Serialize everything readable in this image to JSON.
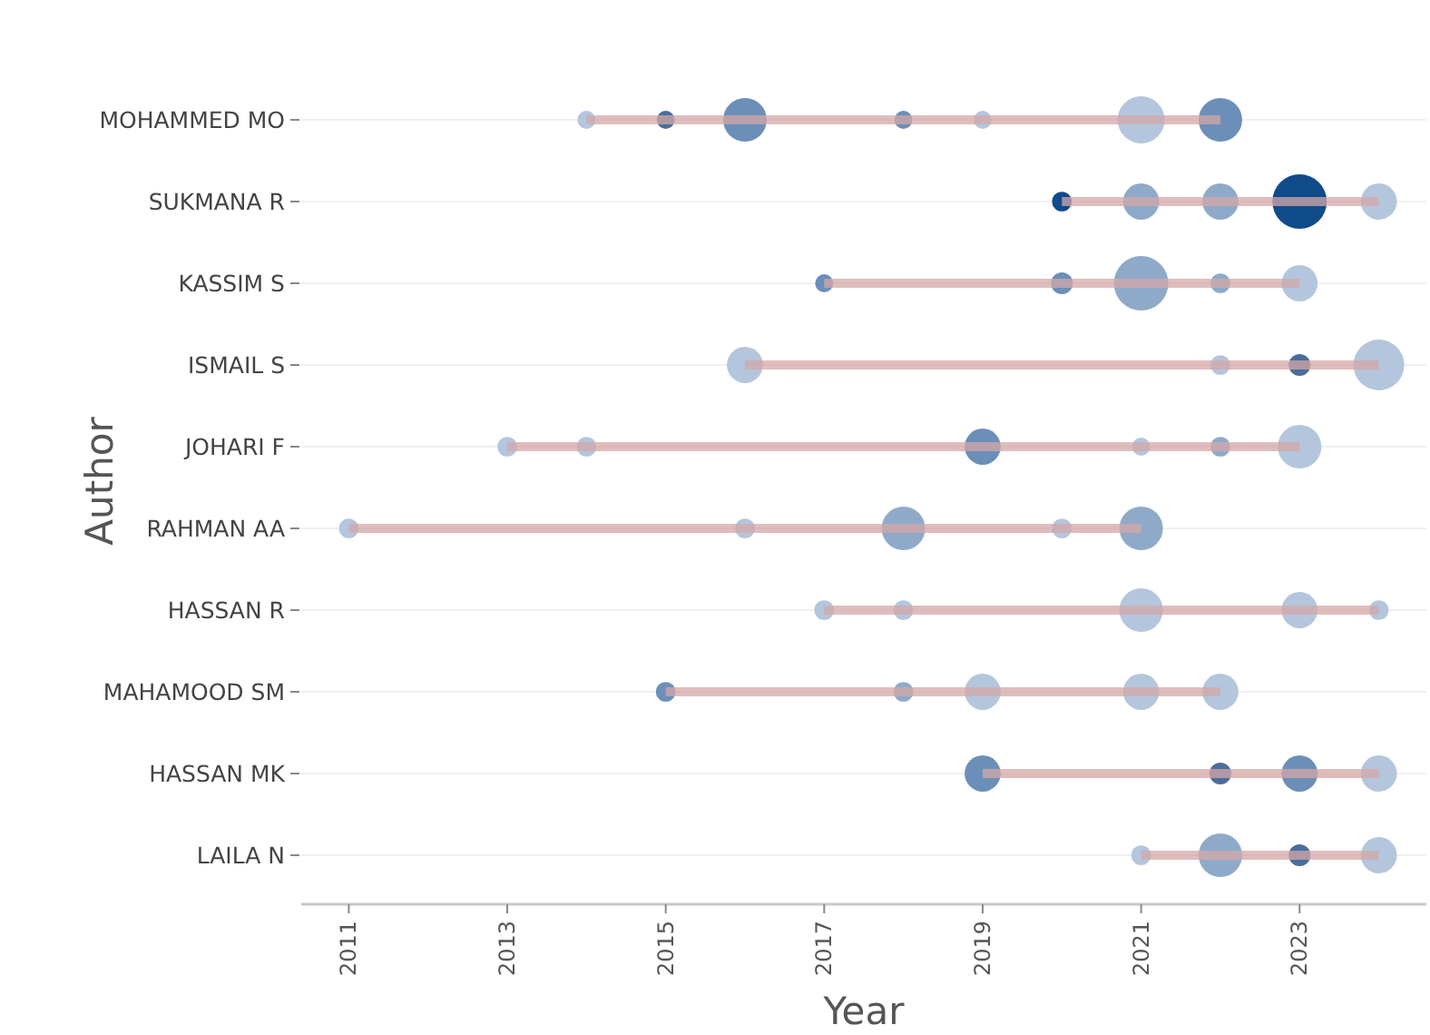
{
  "chart_data": {
    "type": "bar",
    "orientation": "horizontal",
    "xlabel": "Year",
    "ylabel": "Author",
    "categories": [
      "MOHAMMED MO",
      "SUKMANA R",
      "KASSIM S",
      "ISMAIL S",
      "JOHARI F",
      "RAHMAN AA",
      "HASSAN R",
      "MAHAMOOD SM",
      "HASSAN MK",
      "LAILA N"
    ],
    "xlim": [
      2010.4,
      2024.6
    ],
    "xticks": [
      2011,
      2013,
      2015,
      2017,
      2019,
      2021,
      2023
    ],
    "grid": "y",
    "series": [
      {
        "color": "#d4a7a7",
        "base": [
          2014,
          2020,
          2017,
          2016,
          2013,
          2011,
          2017,
          2015,
          2019,
          2021
        ],
        "values": [
          8,
          4,
          6,
          8,
          10,
          10,
          7,
          7,
          5,
          3
        ]
      },
      {
        "type": "bubble",
        "x": [
          "MOHAMMED MO",
          "MOHAMMED MO",
          "MOHAMMED MO",
          "MOHAMMED MO",
          "MOHAMMED MO",
          "MOHAMMED MO",
          "MOHAMMED MO",
          "SUKMANA R",
          "SUKMANA R",
          "SUKMANA R",
          "SUKMANA R",
          "SUKMANA R",
          "KASSIM S",
          "KASSIM S",
          "KASSIM S",
          "KASSIM S",
          "KASSIM S",
          "ISMAIL S",
          "ISMAIL S",
          "ISMAIL S",
          "ISMAIL S",
          "JOHARI F",
          "JOHARI F",
          "JOHARI F",
          "JOHARI F",
          "JOHARI F",
          "JOHARI F",
          "RAHMAN AA",
          "RAHMAN AA",
          "RAHMAN AA",
          "RAHMAN AA",
          "RAHMAN AA",
          "HASSAN R",
          "HASSAN R",
          "HASSAN R",
          "HASSAN R",
          "HASSAN R",
          "MAHAMOOD SM",
          "MAHAMOOD SM",
          "MAHAMOOD SM",
          "MAHAMOOD SM",
          "MAHAMOOD SM",
          "HASSAN MK",
          "HASSAN MK",
          "HASSAN MK",
          "HASSAN MK",
          "LAILA N",
          "LAILA N",
          "LAILA N",
          "LAILA N"
        ],
        "values": [
          2014,
          2015,
          2016,
          2018,
          2019,
          2021,
          2022,
          2020,
          2021,
          2022,
          2023,
          2024,
          2017,
          2020,
          2021,
          2022,
          2023,
          2016,
          2022,
          2023,
          2024,
          2013,
          2014,
          2019,
          2021,
          2022,
          2023,
          2011,
          2016,
          2018,
          2020,
          2021,
          2017,
          2018,
          2021,
          2023,
          2024,
          2015,
          2018,
          2019,
          2021,
          2022,
          2019,
          2022,
          2023,
          2024,
          2021,
          2022,
          2023,
          2024
        ],
        "sizes": [
          0.11,
          0.11,
          0.64,
          0.11,
          0.11,
          0.75,
          0.64,
          0.13,
          0.44,
          0.44,
          1,
          0.44,
          0.11,
          0.16,
          1,
          0.13,
          0.44,
          0.44,
          0.13,
          0.16,
          0.87,
          0.13,
          0.13,
          0.44,
          0.11,
          0.13,
          0.64,
          0.13,
          0.13,
          0.64,
          0.13,
          0.64,
          0.13,
          0.13,
          0.64,
          0.44,
          0.13,
          0.13,
          0.13,
          0.44,
          0.44,
          0.44,
          0.44,
          0.16,
          0.44,
          0.44,
          0.13,
          0.64,
          0.16,
          0.44
        ],
        "colors": [
          "#b3c6dd",
          "#4a6d9c",
          "#6b8fb9",
          "#6b8fb9",
          "#b3c6dd",
          "#b3c6dd",
          "#6b8fb9",
          "#104b8c",
          "#8faac9",
          "#8faac9",
          "#104b8c",
          "#b3c6dd",
          "#6b8fb9",
          "#6b8fb9",
          "#8faac9",
          "#8faac9",
          "#b3c6dd",
          "#b3c6dd",
          "#b3c6dd",
          "#4a6d9c",
          "#b3c6dd",
          "#b3c6dd",
          "#b3c6dd",
          "#6b8fb9",
          "#b3c6dd",
          "#8faac9",
          "#b3c6dd",
          "#b3c6dd",
          "#b3c6dd",
          "#8faac9",
          "#b3c6dd",
          "#8faac9",
          "#b3c6dd",
          "#b3c6dd",
          "#b3c6dd",
          "#b3c6dd",
          "#b3c6dd",
          "#6b8fb9",
          "#8faac9",
          "#b3c6dd",
          "#b3c6dd",
          "#b3c6dd",
          "#6b8fb9",
          "#4a6d9c",
          "#6b8fb9",
          "#b3c6dd",
          "#b3c6dd",
          "#8faac9",
          "#4a6d9c",
          "#b3c6dd"
        ]
      }
    ]
  }
}
